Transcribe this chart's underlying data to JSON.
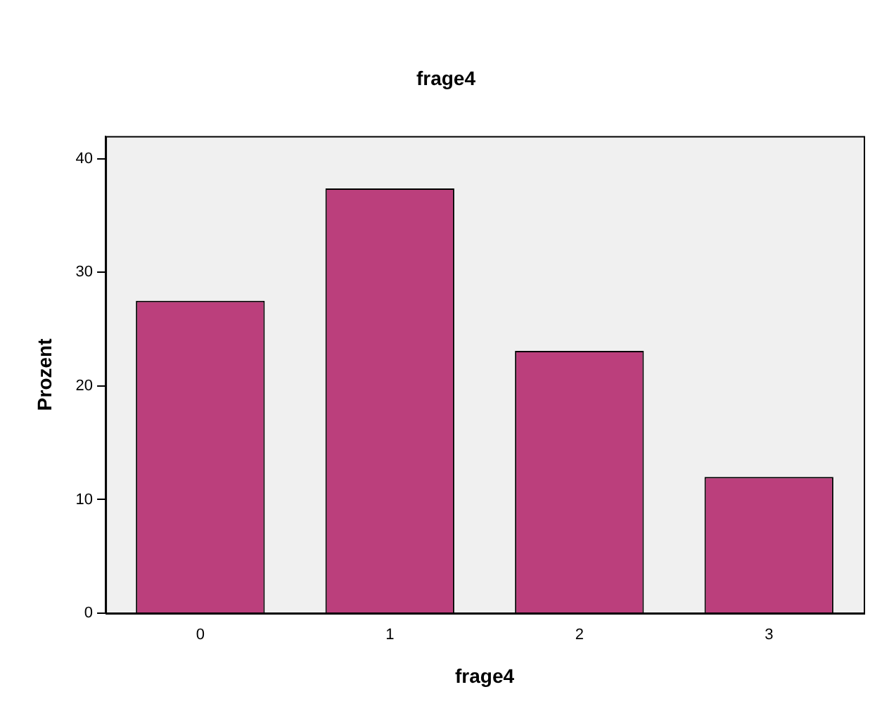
{
  "chart_data": {
    "type": "bar",
    "title": "frage4",
    "xlabel": "frage4",
    "ylabel": "Prozent",
    "categories": [
      "0",
      "1",
      "2",
      "3"
    ],
    "values": [
      27.5,
      37.4,
      23.1,
      12.0
    ],
    "color": "#bb3f7c",
    "ylim": [
      0,
      42
    ],
    "yticks": [
      0,
      10,
      20,
      30,
      40
    ],
    "grid": false,
    "legend": false
  }
}
